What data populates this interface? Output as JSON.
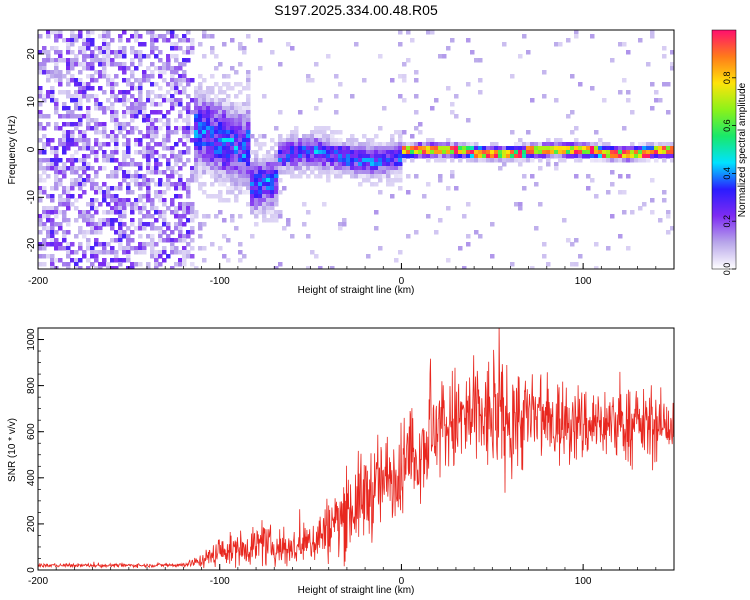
{
  "title": "S197.2025.334.00.48.R05",
  "colors": {
    "snr_line": "#e8271f",
    "colormap": [
      "#ffffff",
      "#b8a6ea",
      "#7e2cf2",
      "#2a1cff",
      "#00e2ff",
      "#19e86a",
      "#8cf21a",
      "#ffe30a",
      "#ff7a1a",
      "#ff0f6e"
    ]
  },
  "chart_data": [
    {
      "type": "heatmap",
      "xlabel": "Height of straight line (km)",
      "ylabel": "Frequency (Hz)",
      "xlim": [
        -200,
        150
      ],
      "ylim": [
        -25,
        25
      ],
      "xticks": [
        -200,
        -100,
        0,
        100
      ],
      "yticks": [
        -20,
        -10,
        0,
        10,
        20
      ],
      "colorbar": {
        "label": "Normalized spectral amplitude",
        "range": [
          0,
          1
        ],
        "ticks": [
          0.0,
          0.2,
          0.4,
          0.6,
          0.8
        ]
      },
      "features": [
        {
          "region": "noise",
          "x_range": [
            -200,
            -115
          ],
          "freq_range": [
            -25,
            25
          ],
          "amplitude": "0.05-0.3"
        },
        {
          "region": "onset",
          "x_range": [
            -115,
            -85
          ],
          "freq_center": 3,
          "freq_spread": 6,
          "amplitude": "0.2-0.4"
        },
        {
          "region": "dip",
          "x_range": [
            -85,
            -70
          ],
          "freq_center": -6,
          "freq_spread": 4,
          "amplitude": "0.2-0.35"
        },
        {
          "region": "converging",
          "x_range": [
            -70,
            0
          ],
          "freq_center": -1,
          "freq_spread": 2.5,
          "amplitude": "0.2-0.45"
        },
        {
          "region": "stable",
          "x_range": [
            0,
            150
          ],
          "freq_center": 0,
          "freq_spread": 1,
          "amplitude": "0.5-1.0"
        }
      ]
    },
    {
      "type": "line",
      "xlabel": "Height of straight line (km)",
      "ylabel": "SNR (10 * v/v)",
      "xlim": [
        -200,
        150
      ],
      "ylim": [
        0,
        1050
      ],
      "xticks": [
        -200,
        -100,
        0,
        100
      ],
      "yticks": [
        0,
        200,
        400,
        600,
        800,
        1000
      ],
      "series": [
        {
          "name": "SNR",
          "x": [
            -200,
            -180,
            -160,
            -140,
            -120,
            -110,
            -100,
            -90,
            -80,
            -70,
            -60,
            -50,
            -40,
            -30,
            -20,
            -10,
            0,
            10,
            20,
            30,
            40,
            50,
            60,
            70,
            80,
            90,
            100,
            110,
            120,
            130,
            140,
            150
          ],
          "mean": [
            20,
            20,
            20,
            20,
            22,
            40,
            80,
            90,
            110,
            100,
            90,
            120,
            180,
            250,
            320,
            380,
            440,
            520,
            620,
            640,
            660,
            660,
            650,
            660,
            640,
            640,
            630,
            640,
            630,
            630,
            620,
            630
          ],
          "noise_amplitude": [
            8,
            8,
            8,
            8,
            10,
            30,
            60,
            70,
            90,
            80,
            80,
            100,
            140,
            180,
            200,
            200,
            200,
            200,
            220,
            240,
            250,
            250,
            240,
            220,
            200,
            180,
            170,
            160,
            160,
            150,
            150,
            140
          ]
        }
      ]
    }
  ]
}
